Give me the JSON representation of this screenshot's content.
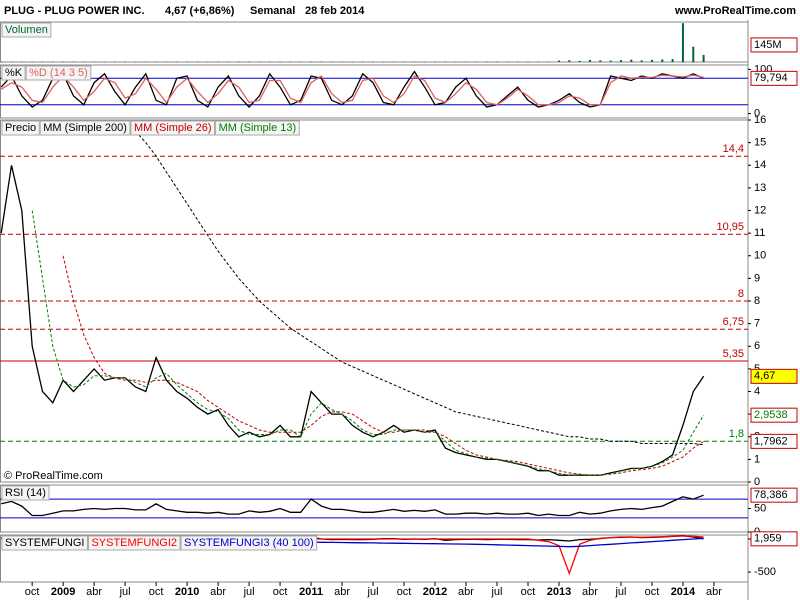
{
  "header": {
    "title": "PLUG - PLUG POWER INC.",
    "quote": "4,67 (+6,86%)",
    "period": "Semanal",
    "date": "28 feb 2014",
    "site": "www.ProRealTime.com",
    "watermark": "© ProRealTime.com"
  },
  "chart_data": [
    {
      "type": "bar",
      "ylim": [
        0,
        340
      ],
      "series": [
        {
          "name": "Volumen",
          "color": "#006633",
          "values": [
            2,
            2,
            2,
            2,
            2,
            2,
            2,
            2,
            2,
            2,
            2,
            2,
            2,
            2,
            2,
            2,
            2,
            2,
            2,
            2,
            2,
            2,
            2,
            2,
            2,
            2,
            2,
            2,
            2,
            2,
            2,
            2,
            2,
            2,
            2,
            2,
            2,
            2,
            2,
            2,
            2,
            2,
            2,
            2,
            2,
            2,
            2,
            2,
            2,
            2,
            2,
            2,
            2,
            2,
            12,
            15,
            10,
            18,
            14,
            12,
            16,
            20,
            14,
            18,
            22,
            25,
            330,
            130,
            60,
            null
          ]
        }
      ],
      "tags": [
        {
          "value": 145,
          "label": "145M",
          "color": "#000000",
          "fill": "#ffffff"
        }
      ]
    },
    {
      "type": "line",
      "ylim": [
        -10,
        110
      ],
      "yticks": [
        0,
        100
      ],
      "hlines": [
        20,
        80
      ],
      "hline_color": "#0000cc",
      "series": [
        {
          "name": "%K",
          "color": "#000000",
          "values": [
            60,
            85,
            40,
            15,
            30,
            80,
            90,
            40,
            20,
            70,
            90,
            50,
            20,
            60,
            90,
            30,
            20,
            80,
            85,
            30,
            15,
            60,
            85,
            40,
            15,
            40,
            90,
            60,
            20,
            30,
            85,
            80,
            30,
            20,
            40,
            90,
            70,
            25,
            20,
            60,
            95,
            60,
            20,
            25,
            60,
            80,
            40,
            15,
            20,
            40,
            60,
            30,
            15,
            20,
            30,
            45,
            25,
            15,
            20,
            85,
            80,
            75,
            85,
            80,
            90,
            85,
            80,
            90,
            79.794,
            null
          ]
        },
        {
          "name": "%D (14 3 5)",
          "color": "#e06060",
          "values": [
            55,
            70,
            60,
            30,
            25,
            60,
            85,
            60,
            30,
            50,
            80,
            70,
            35,
            45,
            80,
            55,
            25,
            60,
            80,
            50,
            25,
            45,
            75,
            60,
            25,
            30,
            75,
            75,
            35,
            25,
            70,
            85,
            45,
            25,
            30,
            75,
            80,
            40,
            25,
            45,
            85,
            75,
            35,
            25,
            45,
            70,
            55,
            25,
            20,
            35,
            55,
            40,
            20,
            20,
            25,
            40,
            35,
            20,
            20,
            70,
            85,
            80,
            82,
            82,
            87,
            85,
            83,
            87,
            82,
            null
          ]
        }
      ],
      "tags": [
        {
          "value": 79.794,
          "label": "79,794",
          "color": "#000000",
          "fill": "#ffffff"
        }
      ]
    },
    {
      "type": "line",
      "ylim": [
        0,
        16
      ],
      "yticks": [
        0,
        1,
        2,
        3,
        4,
        5,
        6,
        7,
        8,
        9,
        10,
        11,
        12,
        13,
        14,
        15,
        16
      ],
      "hlines": [
        {
          "value": 14.4,
          "label": "14,4",
          "color": "#c00000",
          "dash": true
        },
        {
          "value": 10.95,
          "label": "10,95",
          "color": "#c00000",
          "dash": true
        },
        {
          "value": 8,
          "label": "8",
          "color": "#c00000",
          "dash": true
        },
        {
          "value": 6.75,
          "label": "6,75",
          "color": "#c00000",
          "dash": true
        },
        {
          "value": 5.35,
          "label": "5,35",
          "color": "#c00000",
          "dash": false
        },
        {
          "value": 1.8,
          "label": "1,8",
          "color": "#008000",
          "dash": true
        }
      ],
      "series": [
        {
          "name": "Precio",
          "color": "#000000",
          "dash": false,
          "values": [
            11,
            14,
            12,
            6,
            4,
            3.5,
            4.5,
            4,
            4.5,
            5,
            4.5,
            4.6,
            4.6,
            4.2,
            4,
            5.5,
            4.5,
            4,
            3.7,
            3.3,
            3,
            3.2,
            2.5,
            2,
            2.2,
            2,
            2.1,
            2.5,
            2,
            2,
            4,
            3.5,
            3,
            3,
            2.5,
            2.2,
            2,
            2.2,
            2.5,
            2.2,
            2.3,
            2.2,
            2.3,
            1.5,
            1.3,
            1.2,
            1.1,
            1,
            1,
            0.9,
            0.8,
            0.7,
            0.5,
            0.5,
            0.3,
            0.3,
            0.3,
            0.3,
            0.3,
            0.4,
            0.5,
            0.6,
            0.6,
            0.7,
            0.9,
            1.2,
            2.5,
            4,
            4.67,
            null
          ]
        },
        {
          "name": "MM (Simple 200)",
          "color": "#000000",
          "dash": true,
          "values": [
            null,
            null,
            null,
            null,
            null,
            null,
            null,
            null,
            null,
            null,
            null,
            null,
            null,
            15.5,
            15,
            14.4,
            13.7,
            13,
            12.3,
            11.6,
            10.9,
            10.2,
            9.6,
            9,
            8.5,
            8,
            7.6,
            7.2,
            6.8,
            6.5,
            6.2,
            5.9,
            5.6,
            5.3,
            5.1,
            4.9,
            4.7,
            4.5,
            4.3,
            4.1,
            3.9,
            3.7,
            3.5,
            3.3,
            3.1,
            3,
            2.9,
            2.8,
            2.7,
            2.6,
            2.5,
            2.4,
            2.3,
            2.2,
            2.1,
            2,
            2,
            1.9,
            1.9,
            1.8,
            1.8,
            1.8,
            1.7,
            1.7,
            1.7,
            1.7,
            1.7,
            1.7,
            1.65,
            null
          ]
        },
        {
          "name": "MM (Simple 26)",
          "color": "#c00000",
          "dash": true,
          "values": [
            null,
            null,
            null,
            null,
            null,
            null,
            10,
            8,
            6.5,
            5.5,
            4.8,
            4.6,
            4.5,
            4.5,
            4.4,
            4.5,
            4.5,
            4.4,
            4.2,
            4,
            3.6,
            3.3,
            3,
            2.7,
            2.5,
            2.3,
            2.2,
            2.2,
            2.2,
            2.2,
            2.5,
            2.9,
            3.1,
            3.1,
            3,
            2.7,
            2.4,
            2.2,
            2.2,
            2.3,
            2.3,
            2.3,
            2.2,
            2,
            1.7,
            1.4,
            1.2,
            1.1,
            1,
            0.95,
            0.9,
            0.8,
            0.7,
            0.6,
            0.5,
            0.4,
            0.35,
            0.3,
            0.3,
            0.35,
            0.4,
            0.5,
            0.55,
            0.6,
            0.7,
            0.9,
            1.1,
            1.5,
            1.7962,
            null
          ]
        },
        {
          "name": "MM (Simple 13)",
          "color": "#008000",
          "dash": true,
          "values": [
            null,
            null,
            null,
            12,
            9,
            6,
            4.5,
            4.2,
            4.3,
            4.7,
            4.7,
            4.6,
            4.6,
            4.4,
            4.2,
            4.6,
            4.8,
            4.3,
            3.9,
            3.5,
            3.2,
            3.1,
            2.8,
            2.3,
            2.1,
            2.1,
            2.1,
            2.3,
            2.3,
            2,
            3,
            3.5,
            3.2,
            3,
            2.7,
            2.3,
            2.1,
            2.1,
            2.3,
            2.3,
            2.3,
            2.2,
            2.2,
            1.8,
            1.4,
            1.25,
            1.1,
            1.05,
            1,
            0.92,
            0.82,
            0.72,
            0.58,
            0.5,
            0.38,
            0.3,
            0.3,
            0.3,
            0.3,
            0.37,
            0.48,
            0.58,
            0.6,
            0.68,
            0.85,
            1.1,
            1.4,
            2.2,
            2.9538,
            null
          ]
        }
      ],
      "tags": [
        {
          "value": 4.67,
          "label": "4,67",
          "color": "#000000",
          "fill": "#ffff00"
        },
        {
          "value": 2.9538,
          "label": "2,9538",
          "color": "#008000",
          "fill": "#ffffff"
        },
        {
          "value": 1.7962,
          "label": "1,7962",
          "color": "#000000",
          "fill": "#ffffff"
        }
      ]
    },
    {
      "type": "line",
      "ylim": [
        0,
        100
      ],
      "yticks": [
        0,
        50
      ],
      "hlines": [
        30,
        70
      ],
      "hline_color": "#0000cc",
      "series": [
        {
          "name": "RSI (14)",
          "color": "#000000",
          "values": [
            60,
            65,
            55,
            35,
            35,
            40,
            45,
            45,
            48,
            50,
            48,
            50,
            50,
            47,
            47,
            60,
            48,
            45,
            42,
            42,
            40,
            42,
            38,
            38,
            45,
            42,
            44,
            50,
            42,
            42,
            70,
            55,
            48,
            48,
            45,
            42,
            42,
            45,
            48,
            44,
            46,
            44,
            47,
            38,
            38,
            40,
            40,
            38,
            40,
            38,
            38,
            40,
            35,
            38,
            35,
            35,
            42,
            38,
            40,
            45,
            48,
            50,
            48,
            52,
            55,
            65,
            75,
            70,
            78.386,
            null
          ]
        }
      ],
      "tags": [
        {
          "value": 78.386,
          "label": "78,386",
          "color": "#000000",
          "fill": "#ffffff"
        }
      ]
    },
    {
      "type": "line",
      "ylim": [
        -650,
        60
      ],
      "yticks": [
        -500,
        0
      ],
      "categories": [
        null,
        null,
        null,
        "oct",
        null,
        null,
        "2009",
        null,
        null,
        "abr",
        null,
        null,
        "jul",
        null,
        null,
        "oct",
        null,
        null,
        "2010",
        null,
        null,
        "abr",
        null,
        null,
        "jul",
        null,
        null,
        "oct",
        null,
        null,
        "2011",
        null,
        null,
        "abr",
        null,
        null,
        "jul",
        null,
        null,
        "oct",
        null,
        null,
        "2012",
        null,
        null,
        "abr",
        null,
        null,
        "jul",
        null,
        null,
        "oct",
        null,
        null,
        "2013",
        null,
        null,
        "abr",
        null,
        null,
        "jul",
        null,
        null,
        "oct",
        null,
        null,
        "2014",
        null,
        null,
        "abr"
      ],
      "series": [
        {
          "name": "SYSTEMFUNGI",
          "color": "#000000",
          "values": [
            20,
            10,
            -20,
            -40,
            -10,
            0,
            10,
            5,
            10,
            5,
            5,
            0,
            -5,
            0,
            10,
            20,
            -10,
            -10,
            -5,
            -10,
            -10,
            -5,
            -15,
            -10,
            5,
            0,
            5,
            10,
            -5,
            0,
            30,
            0,
            -10,
            -5,
            -10,
            -10,
            -5,
            5,
            5,
            -5,
            0,
            -5,
            5,
            -20,
            -10,
            -5,
            -5,
            -10,
            -5,
            -5,
            -10,
            -10,
            -15,
            -10,
            -20,
            -30,
            -10,
            -5,
            5,
            20,
            25,
            30,
            20,
            25,
            30,
            40,
            50,
            30,
            1.959,
            null
          ]
        },
        {
          "name": "SYSTEMFUNGI2",
          "color": "#ff0000",
          "values": [
            0,
            0,
            0,
            0,
            0,
            0,
            0,
            0,
            0,
            0,
            0,
            0,
            0,
            0,
            0,
            0,
            0,
            0,
            0,
            0,
            0,
            0,
            0,
            0,
            0,
            0,
            0,
            0,
            0,
            0,
            0,
            0,
            0,
            0,
            0,
            0,
            0,
            0,
            0,
            0,
            0,
            0,
            0,
            0,
            0,
            0,
            0,
            0,
            0,
            0,
            0,
            0,
            -20,
            -40,
            -100,
            -520,
            -80,
            -20,
            10,
            20,
            30,
            30,
            25,
            30,
            35,
            40,
            45,
            40,
            30,
            null
          ]
        },
        {
          "name": "SYSTEMFUNGI3 (40 100)",
          "color": "#0000cc",
          "values": [
            0,
            -5,
            -10,
            -15,
            -20,
            -20,
            -20,
            -20,
            -20,
            -20,
            -20,
            -20,
            -20,
            -20,
            -20,
            -20,
            -22,
            -24,
            -26,
            -28,
            -30,
            -32,
            -34,
            -36,
            -38,
            -40,
            -42,
            -44,
            -46,
            -48,
            -48,
            -50,
            -52,
            -54,
            -56,
            -58,
            -60,
            -62,
            -64,
            -66,
            -68,
            -70,
            -72,
            -74,
            -76,
            -78,
            -80,
            -84,
            -88,
            -92,
            -96,
            -100,
            -104,
            -108,
            -112,
            -116,
            -110,
            -100,
            -90,
            -80,
            -70,
            -60,
            -50,
            -40,
            -30,
            -20,
            -10,
            0,
            10,
            null
          ]
        }
      ],
      "tags": [
        {
          "value": 1.959,
          "label": "1,959",
          "color": "#000000",
          "fill": "#ffffff"
        }
      ]
    }
  ]
}
